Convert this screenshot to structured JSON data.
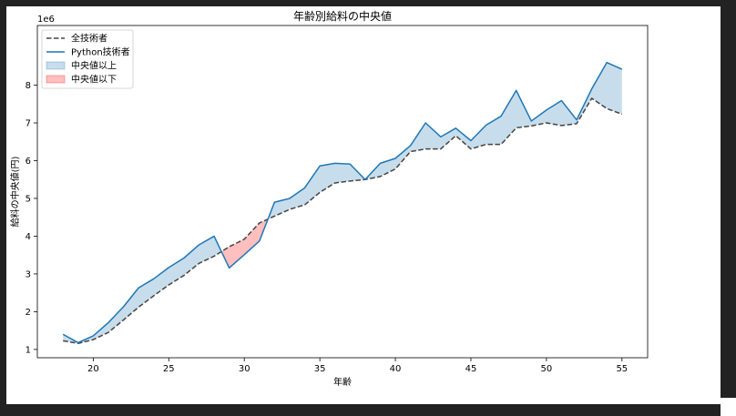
{
  "chart_data": {
    "type": "line",
    "title": "年齢別給料の中央値",
    "xlabel": "年齢",
    "ylabel": "給料の中央値(円)",
    "y_offset_label": "1e6",
    "xlim": [
      16.3,
      56.7
    ],
    "ylim": [
      0.78,
      9.58
    ],
    "xticks": [
      20,
      25,
      30,
      35,
      40,
      45,
      50,
      55
    ],
    "yticks": [
      1,
      2,
      3,
      4,
      5,
      6,
      7,
      8
    ],
    "grid": false,
    "legend_position": "top-left",
    "x": [
      18,
      19,
      20,
      21,
      22,
      23,
      24,
      25,
      26,
      27,
      28,
      29,
      30,
      31,
      32,
      33,
      34,
      35,
      36,
      37,
      38,
      39,
      40,
      41,
      42,
      43,
      44,
      45,
      46,
      47,
      48,
      49,
      50,
      51,
      52,
      53,
      54,
      55
    ],
    "series": [
      {
        "name": "全技術者",
        "style": "dashed",
        "color": "#444444",
        "values": [
          1.23,
          1.16,
          1.26,
          1.45,
          1.78,
          2.12,
          2.42,
          2.71,
          2.96,
          3.28,
          3.47,
          3.72,
          3.92,
          4.35,
          4.53,
          4.71,
          4.83,
          5.16,
          5.41,
          5.46,
          5.5,
          5.58,
          5.78,
          6.24,
          6.31,
          6.31,
          6.66,
          6.31,
          6.43,
          6.43,
          6.87,
          6.92,
          7.0,
          6.93,
          6.98,
          7.65,
          7.38,
          7.23
        ]
      },
      {
        "name": "Python技術者",
        "style": "solid",
        "color": "#1f77b4",
        "values": [
          1.4,
          1.18,
          1.36,
          1.71,
          2.13,
          2.63,
          2.87,
          3.17,
          3.42,
          3.77,
          4.0,
          3.16,
          3.51,
          3.87,
          4.9,
          5.0,
          5.28,
          5.86,
          5.93,
          5.91,
          5.5,
          5.93,
          6.06,
          6.4,
          7.0,
          6.63,
          6.86,
          6.53,
          6.94,
          7.18,
          7.86,
          7.05,
          7.34,
          7.59,
          7.08,
          7.9,
          8.6,
          8.42
        ]
      }
    ],
    "fills": [
      {
        "name": "中央値以上",
        "color": "#1f77b4",
        "alpha": 0.25
      },
      {
        "name": "中央値以下",
        "color": "#ff0000",
        "alpha": 0.25
      }
    ]
  }
}
